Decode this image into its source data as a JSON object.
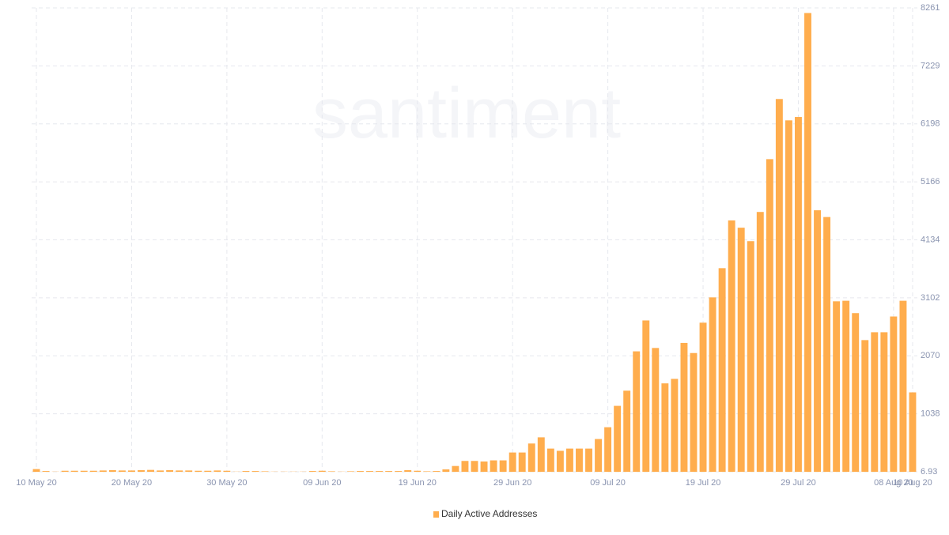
{
  "chart_data": {
    "type": "bar",
    "watermark": "santiment",
    "series": [
      {
        "name": "Daily Active Addresses",
        "color": "#ffad4d",
        "values": [
          55,
          20,
          10,
          25,
          25,
          25,
          25,
          30,
          35,
          30,
          30,
          35,
          40,
          30,
          35,
          30,
          30,
          25,
          25,
          30,
          25,
          10,
          20,
          20,
          15,
          10,
          10,
          10,
          10,
          20,
          25,
          15,
          10,
          15,
          20,
          20,
          20,
          20,
          20,
          35,
          25,
          15,
          20,
          50,
          110,
          200,
          200,
          190,
          210,
          210,
          350,
          350,
          510,
          620,
          420,
          380,
          420,
          420,
          420,
          590,
          800,
          1180,
          1450,
          2150,
          2700,
          2210,
          1580,
          1660,
          2300,
          2120,
          2660,
          3110,
          3630,
          4480,
          4350,
          4110,
          4630,
          5570,
          6640,
          6260,
          6320,
          8170,
          4660,
          4540,
          3040,
          3050,
          2830,
          2350,
          2490,
          2490,
          2770,
          3050,
          1420
        ]
      }
    ],
    "categories": [
      "10 May 20",
      null,
      null,
      null,
      null,
      null,
      null,
      null,
      null,
      null,
      "20 May 20",
      null,
      null,
      null,
      null,
      null,
      null,
      null,
      null,
      null,
      "30 May 20",
      null,
      null,
      null,
      null,
      null,
      null,
      null,
      null,
      null,
      "09 Jun 20",
      null,
      null,
      null,
      null,
      null,
      null,
      null,
      null,
      null,
      "19 Jun 20",
      null,
      null,
      null,
      null,
      null,
      null,
      null,
      null,
      null,
      "29 Jun 20",
      null,
      null,
      null,
      null,
      null,
      null,
      null,
      null,
      null,
      "09 Jul 20",
      null,
      null,
      null,
      null,
      null,
      null,
      null,
      null,
      null,
      "19 Jul 20",
      null,
      null,
      null,
      null,
      null,
      null,
      null,
      null,
      null,
      "29 Jul 20",
      null,
      null,
      null,
      null,
      null,
      null,
      null,
      null,
      null,
      "08 Aug 20",
      null,
      "10 Aug 20"
    ],
    "ylim": [
      6.93,
      8261
    ],
    "yticks": [
      6.93,
      1038,
      2070,
      3102,
      4134,
      5166,
      6198,
      7229,
      8261
    ],
    "grid": true
  }
}
